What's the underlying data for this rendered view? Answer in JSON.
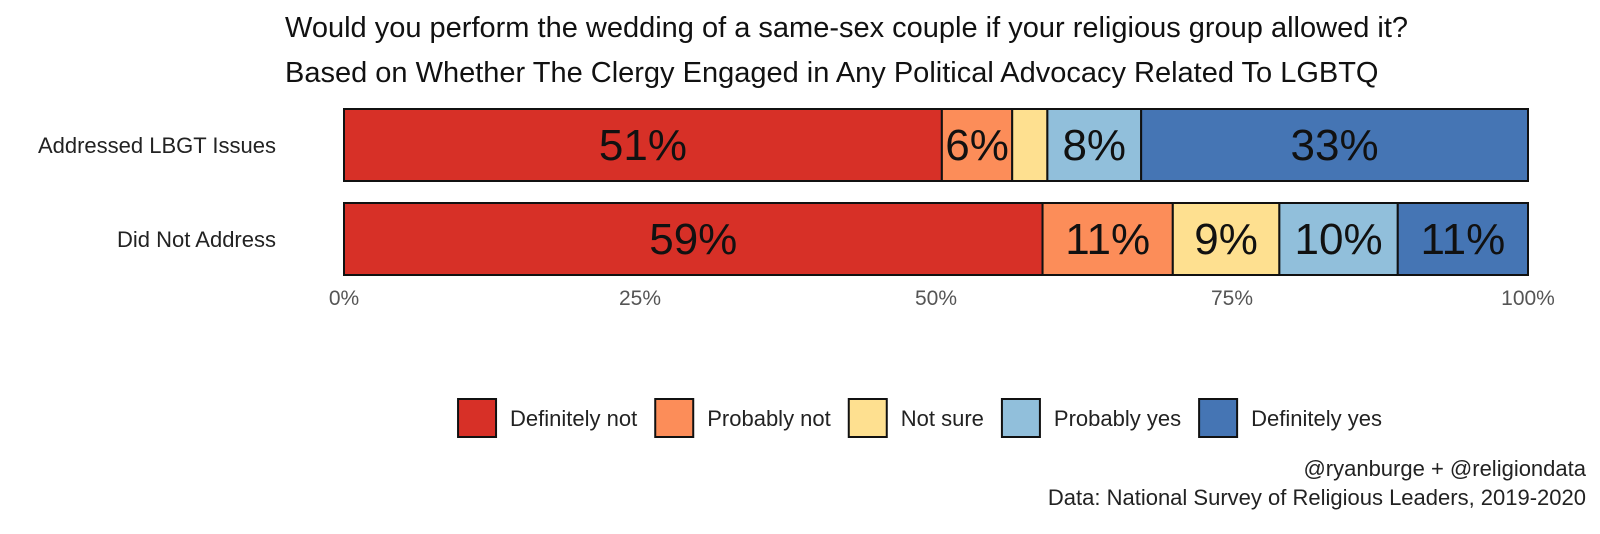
{
  "chart_data": {
    "type": "bar",
    "orientation": "horizontal",
    "stacked": true,
    "title": "Would you perform the wedding of a same-sex couple if your religious group allowed it?",
    "subtitle": "Based on Whether The Clergy Engaged in Any Political Advocacy Related To LGBTQ",
    "categories": [
      "Addressed LBGT Issues",
      "Did Not Address"
    ],
    "series": [
      {
        "name": "Definitely not",
        "color": "#d73027",
        "values": [
          51,
          59
        ],
        "labels": [
          "51%",
          "59%"
        ]
      },
      {
        "name": "Probably not",
        "color": "#fc8d59",
        "values": [
          6,
          11
        ],
        "labels": [
          "6%",
          "11%"
        ]
      },
      {
        "name": "Not sure",
        "color": "#fee090",
        "values": [
          3,
          9
        ],
        "labels": [
          "",
          "9%"
        ]
      },
      {
        "name": "Probably yes",
        "color": "#91bfdb",
        "values": [
          8,
          10
        ],
        "labels": [
          "8%",
          "10%"
        ]
      },
      {
        "name": "Definitely yes",
        "color": "#4575b4",
        "values": [
          33,
          11
        ],
        "labels": [
          "33%",
          "11%"
        ]
      }
    ],
    "xlim": [
      0,
      100
    ],
    "xticks": [
      0,
      25,
      50,
      75,
      100
    ],
    "xtick_labels": [
      "0%",
      "25%",
      "50%",
      "75%",
      "100%"
    ],
    "grid": false,
    "legend_position": "bottom"
  },
  "caption": {
    "line1": "@ryanburge + @religiondata",
    "line2": "Data: National Survey of Religious Leaders, 2019-2020"
  }
}
